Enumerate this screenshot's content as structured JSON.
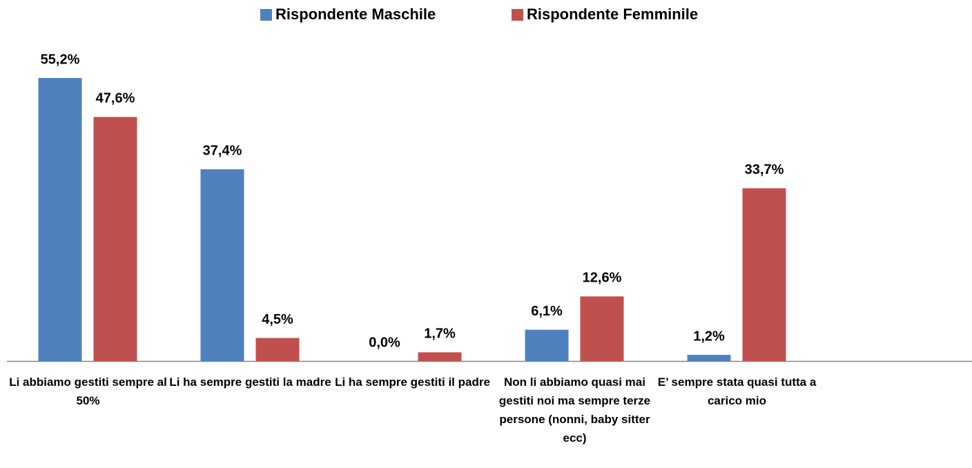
{
  "chart_data": {
    "type": "bar",
    "categories": [
      "Li abbiamo gestiti sempre al 50%",
      "Li ha sempre gestiti la madre",
      "Li ha sempre gestiti il padre",
      "Non li abbiamo quasi mai gestiti noi ma sempre terze persone (nonni, baby sitter ecc)",
      "E’ sempre stata quasi tutta a carico mio"
    ],
    "series": [
      {
        "name": "Rispondente Maschile",
        "color": "#4f81bd",
        "values": [
          55.2,
          37.4,
          0.0,
          6.1,
          1.2
        ],
        "value_labels": [
          "55,2%",
          "37,4%",
          "0,0%",
          "6,1%",
          "1,2%"
        ]
      },
      {
        "name": "Rispondente Femminile",
        "color": "#c0504d",
        "values": [
          47.6,
          4.5,
          1.7,
          12.6,
          33.7
        ],
        "value_labels": [
          "47,6%",
          "4,5%",
          "1,7%",
          "12,6%",
          "33,7%"
        ]
      }
    ],
    "legend": "top"
  }
}
